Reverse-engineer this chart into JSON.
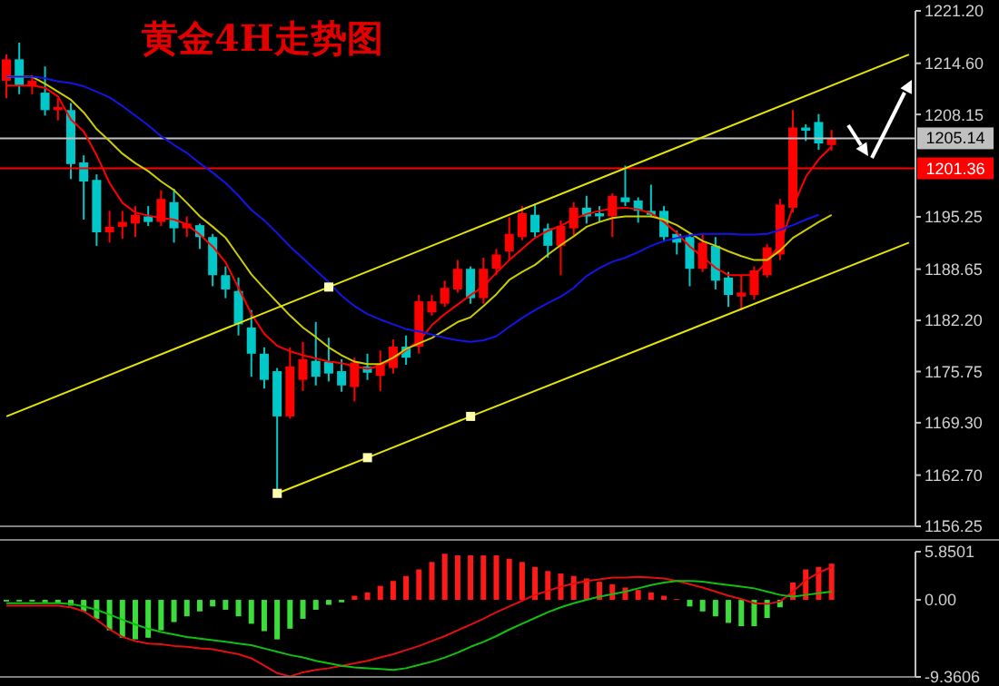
{
  "chart_data": [
    {
      "type": "candlestick",
      "title": "黄金4H走势图",
      "categories": [
        null,
        null,
        null,
        null,
        null,
        null,
        null,
        null,
        null,
        null,
        null,
        null,
        null,
        null,
        null,
        null,
        null,
        null,
        null,
        null,
        null,
        null,
        null,
        null,
        null,
        null,
        null,
        null,
        null,
        null,
        null,
        null,
        null,
        null,
        null,
        null,
        null,
        null,
        null,
        null,
        null,
        null,
        null,
        null,
        null,
        null,
        null,
        null,
        null,
        null,
        null,
        null,
        null,
        null,
        null,
        null,
        null,
        null,
        null,
        null,
        null,
        null,
        null,
        null,
        null,
        null,
        null,
        null,
        null,
        null,
        null
      ],
      "ohlc": [
        [
          1212.4,
          1215.7,
          1210.2,
          1215.1
        ],
        [
          1215.1,
          1217.2,
          1210.7,
          1211.8
        ],
        [
          1211.8,
          1213.1,
          1210.7,
          1212.4
        ],
        [
          1210.9,
          1214.2,
          1208.0,
          1208.7
        ],
        [
          1208.7,
          1210.2,
          1207.4,
          1209.1
        ],
        [
          1208.7,
          1209.6,
          1200.0,
          1201.9
        ],
        [
          1202.1,
          1203.0,
          1194.9,
          1199.7
        ],
        [
          1199.9,
          1200.6,
          1191.6,
          1193.3
        ],
        [
          1193.3,
          1196.0,
          1192.0,
          1194.0
        ],
        [
          1194.0,
          1196.0,
          1192.5,
          1194.6
        ],
        [
          1194.4,
          1196.6,
          1192.7,
          1195.5
        ],
        [
          1195.3,
          1196.6,
          1194.1,
          1194.6
        ],
        [
          1194.6,
          1198.6,
          1194.1,
          1197.5
        ],
        [
          1197.1,
          1198.8,
          1192.0,
          1193.8
        ],
        [
          1193.8,
          1195.3,
          1192.7,
          1194.4
        ],
        [
          1194.2,
          1194.4,
          1191.2,
          1192.7
        ],
        [
          1192.7,
          1193.1,
          1186.5,
          1187.9
        ],
        [
          1187.9,
          1189.0,
          1185.0,
          1186.1
        ],
        [
          1185.9,
          1187.6,
          1180.3,
          1181.7
        ],
        [
          1181.3,
          1183.5,
          1175.1,
          1178.0
        ],
        [
          1178.0,
          1178.8,
          1173.6,
          1174.7
        ],
        [
          1175.8,
          1176.2,
          1160.4,
          1170.1
        ],
        [
          1170.1,
          1178.8,
          1169.8,
          1176.4
        ],
        [
          1174.7,
          1179.5,
          1173.3,
          1177.3
        ],
        [
          1177.1,
          1182.0,
          1174.0,
          1175.1
        ],
        [
          1177.0,
          1180.0,
          1174.5,
          1175.5
        ],
        [
          1175.8,
          1177.3,
          1173.2,
          1174.0
        ],
        [
          1173.8,
          1177.5,
          1172.0,
          1176.9
        ],
        [
          1176.4,
          1178.0,
          1174.7,
          1175.6
        ],
        [
          1175.2,
          1178.4,
          1173.3,
          1176.6
        ],
        [
          1176.2,
          1179.8,
          1175.5,
          1178.9
        ],
        [
          1178.9,
          1180.3,
          1176.6,
          1177.5
        ],
        [
          1178.9,
          1185.4,
          1178.0,
          1184.6
        ],
        [
          1183.2,
          1185.4,
          1182.8,
          1184.6
        ],
        [
          1184.3,
          1187.2,
          1183.9,
          1186.3
        ],
        [
          1186.1,
          1189.8,
          1185.7,
          1188.7
        ],
        [
          1188.7,
          1189.0,
          1184.3,
          1185.0
        ],
        [
          1185.0,
          1190.1,
          1184.3,
          1188.7
        ],
        [
          1188.7,
          1191.2,
          1187.9,
          1190.5
        ],
        [
          1190.9,
          1195.2,
          1189.9,
          1193.1
        ],
        [
          1192.7,
          1196.6,
          1192.3,
          1195.7
        ],
        [
          1195.5,
          1196.9,
          1192.7,
          1193.3
        ],
        [
          1193.8,
          1194.4,
          1190.1,
          1191.6
        ],
        [
          1191.6,
          1194.8,
          1187.9,
          1194.1
        ],
        [
          1193.8,
          1197.1,
          1192.9,
          1196.4
        ],
        [
          1196.4,
          1197.9,
          1194.4,
          1195.3
        ],
        [
          1195.7,
          1196.6,
          1194.6,
          1195.3
        ],
        [
          1195.3,
          1198.2,
          1192.7,
          1197.9
        ],
        [
          1197.7,
          1201.7,
          1196.6,
          1197.1
        ],
        [
          1197.3,
          1197.7,
          1194.5,
          1196.0
        ],
        [
          1196.0,
          1199.3,
          1195.2,
          1195.5
        ],
        [
          1196.0,
          1196.6,
          1192.3,
          1192.7
        ],
        [
          1193.1,
          1193.5,
          1190.5,
          1192.0
        ],
        [
          1192.7,
          1193.1,
          1186.5,
          1188.7
        ],
        [
          1188.7,
          1193.1,
          1188.3,
          1192.0
        ],
        [
          1191.6,
          1192.7,
          1186.1,
          1187.2
        ],
        [
          1187.6,
          1188.3,
          1183.9,
          1185.4
        ],
        [
          1185.2,
          1187.9,
          1183.5,
          1185.7
        ],
        [
          1185.4,
          1189.0,
          1184.8,
          1188.5
        ],
        [
          1187.9,
          1191.8,
          1187.6,
          1191.4
        ],
        [
          1190.5,
          1197.5,
          1189.8,
          1196.8
        ],
        [
          1196.4,
          1208.7,
          1195.8,
          1206.5
        ],
        [
          1206.5,
          1206.9,
          1204.8,
          1206.1
        ],
        [
          1207.2,
          1208.2,
          1203.7,
          1204.5
        ],
        [
          1204.3,
          1206.2,
          1203.6,
          1205.14
        ],
        null,
        null,
        null,
        null,
        null,
        null
      ],
      "colors": [
        "#ff0000",
        "#00c8c8",
        "#ff0000",
        "#00c8c8",
        "#ff0000",
        "#00c8c8",
        "#00c8c8",
        "#00c8c8",
        "#ff0000",
        "#ff0000",
        "#ff0000",
        "#00c8c8",
        "#ff0000",
        "#00c8c8",
        "#ff0000",
        "#00c8c8",
        "#00c8c8",
        "#00c8c8",
        "#00c8c8",
        "#00c8c8",
        "#00c8c8",
        "#00c8c8",
        "#ff0000",
        "#ff0000",
        "#00c8c8",
        "#00c8c8",
        "#00c8c8",
        "#ff0000",
        "#00c8c8",
        "#ff0000",
        "#ff0000",
        "#00c8c8",
        "#ff0000",
        "#ff0000",
        "#ff0000",
        "#ff0000",
        "#00c8c8",
        "#ff0000",
        "#ff0000",
        "#ff0000",
        "#ff0000",
        "#00c8c8",
        "#00c8c8",
        "#ff0000",
        "#ff0000",
        "#00c8c8",
        "#00c8c8",
        "#ff0000",
        "#00c8c8",
        "#00c8c8",
        "#00c8c8",
        "#00c8c8",
        "#00c8c8",
        "#00c8c8",
        "#ff0000",
        "#00c8c8",
        "#00c8c8",
        "#ff0000",
        "#ff0000",
        "#ff0000",
        "#ff0000",
        "#ff0000",
        "#00c8c8",
        "#00c8c8",
        "#ff0000",
        null,
        null,
        null,
        null,
        null,
        null
      ],
      "series": [
        {
          "type": "line",
          "color": "#ff0000",
          "values": [
            1211.8,
            1211.8,
            1211.8,
            1211.5,
            1210.4,
            1207.5,
            1206.0,
            1203.0,
            1199.5,
            1197.0,
            1195.8,
            1195.4,
            1195.1,
            1194.9,
            1194.3,
            1193.0,
            1191.5,
            1189.5,
            1186.3,
            1183.0,
            1180.5,
            1179.0,
            1178.3,
            1177.8,
            1177.4,
            1177.0,
            1176.8,
            1176.4,
            1176.1,
            1176.5,
            1177.3,
            1178.5,
            1179.6,
            1181.6,
            1183.0,
            1184.2,
            1185.4,
            1186.5,
            1188.2,
            1189.8,
            1191.2,
            1192.6,
            1193.5,
            1194.1,
            1195.0,
            1195.6,
            1196.0,
            1196.3,
            1196.4,
            1196.2,
            1195.7,
            1194.6,
            1193.2,
            1191.5,
            1190.2,
            1188.8,
            1187.9,
            1187.9,
            1187.9,
            1189.6,
            1191.8,
            1196.5,
            1200.3,
            1202.5,
            1204.1,
            null,
            null,
            null,
            null,
            null,
            null
          ]
        },
        {
          "type": "line",
          "color": "#cccc00",
          "values": [
            1212.9,
            1212.9,
            1212.9,
            1212.0,
            1211.0,
            1210.0,
            1208.4,
            1206.3,
            1204.8,
            1203.2,
            1202.0,
            1201.0,
            1199.7,
            1198.6,
            1197.0,
            1195.3,
            1194.0,
            1192.6,
            1190.3,
            1188.0,
            1186.2,
            1184.5,
            1182.8,
            1181.3,
            1180.1,
            1178.8,
            1177.8,
            1177.0,
            1176.7,
            1176.7,
            1177.5,
            1178.6,
            1179.3,
            1180.0,
            1181.0,
            1182.0,
            1182.6,
            1184.0,
            1185.5,
            1187.3,
            1188.3,
            1189.2,
            1190.5,
            1191.7,
            1192.8,
            1194.0,
            1194.6,
            1195.1,
            1195.3,
            1195.3,
            1195.3,
            1194.9,
            1194.2,
            1193.2,
            1192.2,
            1191.6,
            1190.9,
            1190.3,
            1189.8,
            1189.8,
            1191.0,
            1192.6,
            1193.6,
            1194.6,
            1195.5,
            null,
            null,
            null,
            null,
            null,
            null
          ]
        },
        {
          "type": "line",
          "color": "#1414e6",
          "values": [
            1212.9,
            1212.9,
            1212.9,
            1212.7,
            1212.3,
            1212.1,
            1211.7,
            1211.0,
            1210.3,
            1209.2,
            1208.0,
            1206.8,
            1205.4,
            1204.3,
            1203.3,
            1202.0,
            1200.8,
            1199.5,
            1197.9,
            1196.1,
            1194.8,
            1193.2,
            1191.5,
            1190.0,
            1188.5,
            1187.0,
            1185.3,
            1184.0,
            1183.0,
            1182.3,
            1181.7,
            1181.1,
            1180.8,
            1180.4,
            1180.0,
            1179.7,
            1179.5,
            1179.7,
            1180.2,
            1181.4,
            1182.5,
            1183.5,
            1184.4,
            1185.2,
            1186.3,
            1187.8,
            1188.8,
            1189.6,
            1190.1,
            1190.8,
            1191.6,
            1192.2,
            1192.6,
            1192.9,
            1193.1,
            1193.1,
            1193.1,
            1193.0,
            1193.0,
            1193.1,
            1193.6,
            1194.2,
            1194.9,
            1195.5,
            null,
            null,
            null,
            null,
            null,
            null,
            null
          ]
        },
        {
          "type": "line",
          "color": "#e6e600",
          "values": [
            1170.1,
            null,
            null,
            null,
            null,
            null,
            null,
            null,
            null,
            null,
            null,
            null,
            null,
            null,
            null,
            null,
            null,
            null,
            null,
            null,
            null,
            null,
            null,
            null,
            null,
            1186.4,
            null,
            null,
            null,
            null,
            null,
            null,
            null,
            null,
            null,
            null,
            null,
            null,
            null,
            null,
            null,
            null,
            null,
            null,
            null,
            null,
            null,
            null,
            null,
            null,
            null,
            null,
            null,
            null,
            null,
            null,
            null,
            null,
            null,
            null,
            null,
            null,
            null,
            null,
            null,
            null,
            null,
            null,
            null,
            null,
            1215.7
          ]
        },
        {
          "type": "line",
          "color": "#e6e600",
          "values": [
            null,
            null,
            null,
            null,
            null,
            null,
            null,
            null,
            null,
            null,
            null,
            null,
            null,
            null,
            null,
            null,
            null,
            null,
            null,
            null,
            null,
            1160.4,
            null,
            null,
            null,
            null,
            null,
            null,
            1164.9,
            null,
            null,
            null,
            null,
            null,
            null,
            null,
            1170.1,
            null,
            null,
            null,
            null,
            null,
            null,
            null,
            null,
            null,
            null,
            null,
            null,
            null,
            null,
            null,
            null,
            null,
            null,
            null,
            null,
            null,
            null,
            null,
            null,
            null,
            null,
            null,
            null,
            null,
            null,
            null,
            null,
            null,
            1192.0
          ]
        },
        {
          "type": "scatter",
          "color": "#ffffb0",
          "marker": "square",
          "values": [
            null,
            null,
            null,
            null,
            null,
            null,
            null,
            null,
            null,
            null,
            null,
            null,
            null,
            null,
            null,
            null,
            null,
            null,
            null,
            null,
            null,
            1160.4,
            null,
            null,
            null,
            1186.4,
            null,
            null,
            1164.9,
            null,
            null,
            null,
            null,
            null,
            null,
            null,
            1170.1,
            null,
            null,
            null,
            null,
            null,
            null,
            null,
            null,
            null,
            null,
            null,
            null,
            null,
            null,
            null,
            null,
            null,
            null,
            null,
            null,
            null,
            null,
            null,
            null,
            null,
            null,
            null,
            null,
            null,
            null,
            null,
            null,
            null,
            null
          ]
        }
      ],
      "ylim": [
        1156.25,
        1221.2
      ],
      "yticks": [
        1156.25,
        {
          "value": 1162.7,
          "label": "1162.70"
        },
        {
          "value": 1169.3,
          "label": "1169.30"
        },
        1175.75,
        {
          "value": 1182.2,
          "label": "1182.20"
        },
        1188.65,
        1195.25,
        1208.15,
        {
          "value": 1214.6,
          "label": "1214.60"
        },
        {
          "value": 1221.2,
          "label": "1221.20"
        }
      ],
      "ref_lines": [
        {
          "axis": "y",
          "value": 1205.14,
          "label": "1205.14",
          "color": "#c0c0c0"
        },
        {
          "axis": "y",
          "value": 1201.36,
          "label": "1201.36",
          "color": "#ff0000"
        }
      ],
      "tick_labels": "y"
    },
    {
      "type": "bar",
      "categories": [
        null,
        null,
        null,
        null,
        null,
        null,
        null,
        null,
        null,
        null,
        null,
        null,
        null,
        null,
        null,
        null,
        null,
        null,
        null,
        null,
        null,
        null,
        null,
        null,
        null,
        null,
        null,
        null,
        null,
        null,
        null,
        null,
        null,
        null,
        null,
        null,
        null,
        null,
        null,
        null,
        null,
        null,
        null,
        null,
        null,
        null,
        null,
        null,
        null,
        null,
        null,
        null,
        null,
        null,
        null,
        null,
        null,
        null,
        null,
        null,
        null,
        null,
        null,
        null,
        null,
        null,
        null,
        null,
        null,
        null,
        null
      ],
      "series": [
        {
          "type": "bar",
          "values": [
            -0.2,
            -0.2,
            -0.2,
            -0.3,
            -0.4,
            -0.7,
            -1.4,
            -2.3,
            -3.7,
            -4.6,
            -4.8,
            -4.6,
            -3.7,
            -2.7,
            -2.0,
            -1.4,
            -0.8,
            -1.2,
            -2.0,
            -2.9,
            -3.8,
            -4.8,
            -3.5,
            -2.3,
            -1.2,
            -0.6,
            -0.3,
            0.5,
            0.9,
            1.7,
            2.3,
            2.9,
            3.7,
            4.6,
            5.6,
            5.4,
            5.4,
            5.4,
            5.4,
            5.0,
            4.6,
            4.0,
            3.5,
            3.2,
            2.9,
            2.6,
            2.2,
            1.9,
            1.5,
            1.2,
            0.9,
            0.5,
            0.1,
            -0.8,
            -1.4,
            -2.0,
            -2.8,
            -3.2,
            -3.2,
            -2.2,
            -0.9,
            2.1,
            3.7,
            4.0,
            4.4,
            null,
            null,
            null,
            null,
            null,
            null
          ],
          "colors": [
            "#3cdc3c",
            "#3cdc3c",
            "#3cdc3c",
            "#3cdc3c",
            "#3cdc3c",
            "#3cdc3c",
            "#3cdc3c",
            "#3cdc3c",
            "#3cdc3c",
            "#3cdc3c",
            "#3cdc3c",
            "#3cdc3c",
            "#3cdc3c",
            "#3cdc3c",
            "#3cdc3c",
            "#3cdc3c",
            "#3cdc3c",
            "#3cdc3c",
            "#3cdc3c",
            "#3cdc3c",
            "#3cdc3c",
            "#3cdc3c",
            "#3cdc3c",
            "#3cdc3c",
            "#3cdc3c",
            "#3cdc3c",
            "#3cdc3c",
            "#ff1a1a",
            "#ff1a1a",
            "#ff1a1a",
            "#ff1a1a",
            "#ff1a1a",
            "#ff1a1a",
            "#ff1a1a",
            "#ff1a1a",
            "#ff1a1a",
            "#ff1a1a",
            "#ff1a1a",
            "#ff1a1a",
            "#ff1a1a",
            "#ff1a1a",
            "#ff1a1a",
            "#ff1a1a",
            "#ff1a1a",
            "#ff1a1a",
            "#ff1a1a",
            "#ff1a1a",
            "#ff1a1a",
            "#ff1a1a",
            "#ff1a1a",
            "#ff1a1a",
            "#ff1a1a",
            "#ff1a1a",
            "#3cdc3c",
            "#3cdc3c",
            "#3cdc3c",
            "#3cdc3c",
            "#3cdc3c",
            "#3cdc3c",
            "#3cdc3c",
            "#3cdc3c",
            "#ff1a1a",
            "#ff1a1a",
            "#ff1a1a",
            "#ff1a1a",
            null,
            null,
            null,
            null,
            null,
            null
          ]
        },
        {
          "type": "line",
          "color": "#e01010",
          "values": [
            -0.7,
            -0.7,
            -0.7,
            -0.7,
            -0.7,
            -0.9,
            -1.4,
            -2.4,
            -3.6,
            -4.5,
            -5.0,
            -5.3,
            -5.4,
            -5.6,
            -5.7,
            -5.9,
            -6.0,
            -6.3,
            -6.6,
            -7.1,
            -8.0,
            -8.9,
            -9.3,
            -8.8,
            -8.5,
            -8.3,
            -8.0,
            -7.7,
            -7.4,
            -7.0,
            -6.6,
            -6.1,
            -5.6,
            -5.0,
            -4.4,
            -3.7,
            -3.0,
            -2.3,
            -1.5,
            -0.8,
            -0.1,
            0.6,
            1.1,
            1.6,
            2.0,
            2.3,
            2.5,
            2.7,
            2.7,
            2.8,
            2.7,
            2.6,
            2.3,
            1.9,
            1.5,
            1.0,
            0.5,
            0.1,
            -0.4,
            -0.5,
            -0.2,
            1.0,
            2.4,
            3.3,
            4.0,
            null,
            null,
            null,
            null,
            null,
            null
          ]
        },
        {
          "type": "line",
          "color": "#10c010",
          "values": [
            -0.4,
            -0.4,
            -0.4,
            -0.4,
            -0.4,
            -0.5,
            -0.8,
            -1.2,
            -1.8,
            -2.4,
            -3.0,
            -3.5,
            -3.9,
            -4.2,
            -4.5,
            -4.7,
            -4.9,
            -5.1,
            -5.3,
            -5.5,
            -5.9,
            -6.3,
            -6.7,
            -7.0,
            -7.4,
            -7.7,
            -8.0,
            -8.2,
            -8.3,
            -8.4,
            -8.5,
            -8.3,
            -7.9,
            -7.5,
            -7.0,
            -6.4,
            -5.7,
            -5.1,
            -4.4,
            -3.6,
            -2.9,
            -2.2,
            -1.5,
            -0.9,
            -0.4,
            0.0,
            0.4,
            0.7,
            1.0,
            1.4,
            1.8,
            2.1,
            2.3,
            2.3,
            2.2,
            2.0,
            1.8,
            1.6,
            1.4,
            1.0,
            0.6,
            0.4,
            0.6,
            0.8,
            1.0,
            null,
            null,
            null,
            null,
            null,
            null
          ]
        }
      ],
      "ylim": [
        -9.3606,
        5.8501
      ],
      "yticks": [
        -9.3606,
        {
          "value": 0,
          "label": "0.00"
        },
        5.8501
      ],
      "tick_labels": "y"
    }
  ]
}
